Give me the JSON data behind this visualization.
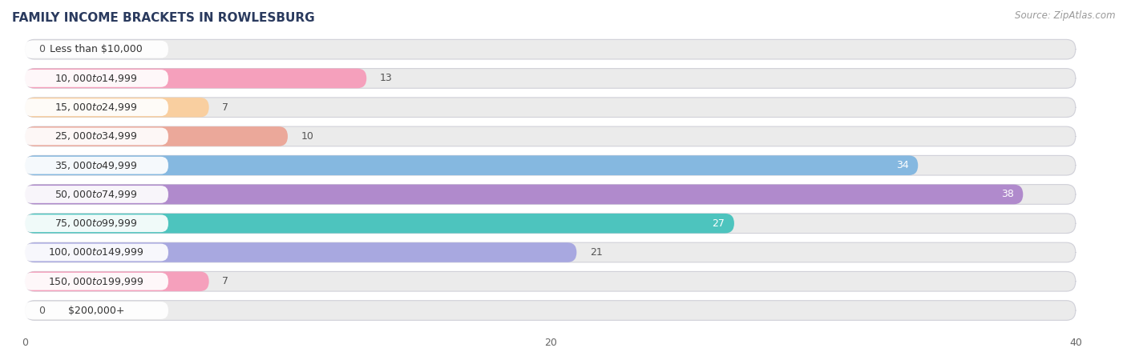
{
  "title": "FAMILY INCOME BRACKETS IN ROWLESBURG",
  "source": "Source: ZipAtlas.com",
  "categories": [
    "Less than $10,000",
    "$10,000 to $14,999",
    "$15,000 to $24,999",
    "$25,000 to $34,999",
    "$35,000 to $49,999",
    "$50,000 to $74,999",
    "$75,000 to $99,999",
    "$100,000 to $149,999",
    "$150,000 to $199,999",
    "$200,000+"
  ],
  "values": [
    0,
    13,
    7,
    10,
    34,
    38,
    27,
    21,
    7,
    0
  ],
  "bar_colors": [
    "#b8b8e0",
    "#f5a0bc",
    "#f9cfa0",
    "#eba89a",
    "#85b8e0",
    "#b08acc",
    "#4dc4be",
    "#a8a8e0",
    "#f5a0bc",
    "#f9cfa0"
  ],
  "label_colors_inside": [
    "#ffffff",
    "#ffffff",
    "#ffffff",
    "#ffffff",
    "#ffffff",
    "#ffffff",
    "#ffffff",
    "#ffffff",
    "#ffffff",
    "#ffffff"
  ],
  "value_colors": [
    "#555555",
    "#555555",
    "#555555",
    "#555555",
    "#ffffff",
    "#ffffff",
    "#ffffff",
    "#555555",
    "#555555",
    "#555555"
  ],
  "xlim_min": -0.5,
  "xlim_max": 41.5,
  "xticks": [
    0,
    20,
    40
  ],
  "bg_color": "#ffffff",
  "bar_bg_color": "#ebebeb",
  "bar_bg_color2": "#e0e0e8",
  "title_fontsize": 11,
  "label_fontsize": 9,
  "value_fontsize": 9,
  "source_fontsize": 8.5,
  "bar_height": 0.68,
  "bar_gap": 1.0,
  "n_bars": 10
}
